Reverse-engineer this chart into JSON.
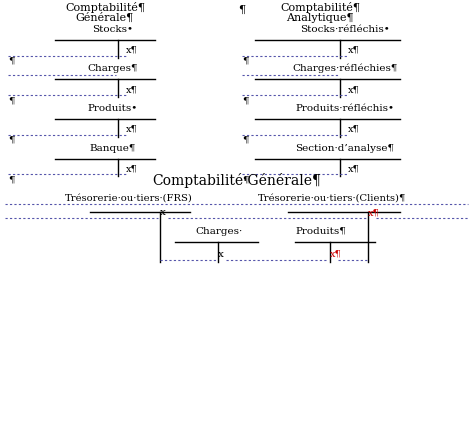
{
  "bg_color": "#ffffff",
  "dot_color": "#5555aa",
  "line_color": "#000000",
  "left_header_1": "Comptabilité¶",
  "left_header_2": "Générale¶",
  "right_header_1": "Comptabilité¶",
  "right_header_2": "Analytique¶",
  "para_mid_top": "¶",
  "left_accounts": [
    "Stocks•",
    "Charges¶",
    "Produits•",
    "Banque¶"
  ],
  "right_accounts": [
    "Stocks·réfléchis•",
    "Charges·réfléchies¶",
    "Produits·réfléchis•",
    "Section·d’analyse¶"
  ],
  "x_para": "x¶",
  "para": "¶",
  "title_bottom": "Comptabilité·Générale¶",
  "bot_left_label": "Trésorerie·ou·tiers·(FRS)",
  "bot_right_label": "Trésorerie·ou·tiers·(Clients)¶",
  "bot_charges": "Charges·",
  "bot_produits": "Produits¶",
  "x_black": "x",
  "x_red_para": "x¶"
}
